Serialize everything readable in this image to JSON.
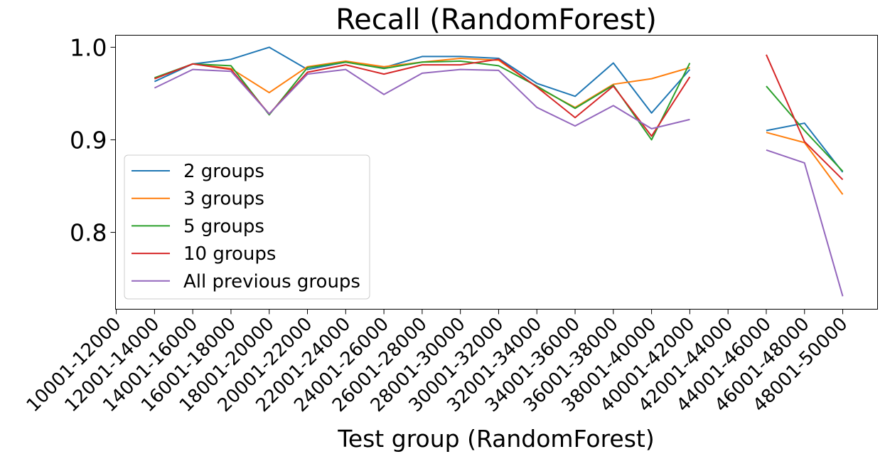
{
  "chart_data": {
    "type": "line",
    "title": "Recall (RandomForest)",
    "xlabel": "Test group (RandomForest)",
    "ylabel": "",
    "ylim": [
      0.717,
      1.013
    ],
    "yticks": [
      0.8,
      0.9,
      1.0
    ],
    "ytick_labels": [
      "0.8",
      "0.9",
      "1.0"
    ],
    "grid": false,
    "legend_position": "center-left",
    "categories": [
      "10001-12000",
      "12001-14000",
      "14001-16000",
      "16001-18000",
      "18001-20000",
      "20001-22000",
      "22001-24000",
      "24001-26000",
      "26001-28000",
      "28001-30000",
      "30001-32000",
      "32001-34000",
      "34001-36000",
      "36001-38000",
      "38001-40000",
      "40001-42000",
      "42001-44000",
      "44001-46000",
      "46001-48000",
      "48001-50000"
    ],
    "series": [
      {
        "name": "2 groups",
        "color": "#1f77b4",
        "values": [
          null,
          0.963,
          0.982,
          0.987,
          1.0,
          0.976,
          0.984,
          0.978,
          0.99,
          0.99,
          0.988,
          0.961,
          0.947,
          0.983,
          0.929,
          0.976,
          null,
          0.91,
          0.918,
          0.865
        ]
      },
      {
        "name": "3 groups",
        "color": "#ff7f0e",
        "values": [
          null,
          0.966,
          0.982,
          0.977,
          0.951,
          0.979,
          0.985,
          0.979,
          0.984,
          0.988,
          0.986,
          0.957,
          0.935,
          0.96,
          0.966,
          0.978,
          null,
          0.908,
          0.897,
          0.841
        ]
      },
      {
        "name": "5 groups",
        "color": "#2ca02c",
        "values": [
          null,
          0.967,
          0.982,
          0.98,
          0.927,
          0.978,
          0.984,
          0.977,
          0.984,
          0.985,
          0.98,
          0.958,
          0.934,
          0.959,
          0.9,
          0.983,
          null,
          0.958,
          0.91,
          0.866
        ]
      },
      {
        "name": "10 groups",
        "color": "#d62728",
        "values": [
          null,
          0.966,
          0.982,
          0.976,
          0.928,
          0.973,
          0.981,
          0.971,
          0.981,
          0.981,
          0.987,
          0.957,
          0.924,
          0.958,
          0.904,
          0.968,
          null,
          0.992,
          0.898,
          0.857
        ]
      },
      {
        "name": "All previous groups",
        "color": "#9467bd",
        "values": [
          null,
          0.956,
          0.976,
          0.974,
          0.928,
          0.971,
          0.976,
          0.949,
          0.972,
          0.976,
          0.975,
          0.935,
          0.915,
          0.937,
          0.912,
          0.922,
          null,
          0.889,
          0.875,
          0.731
        ]
      }
    ]
  }
}
